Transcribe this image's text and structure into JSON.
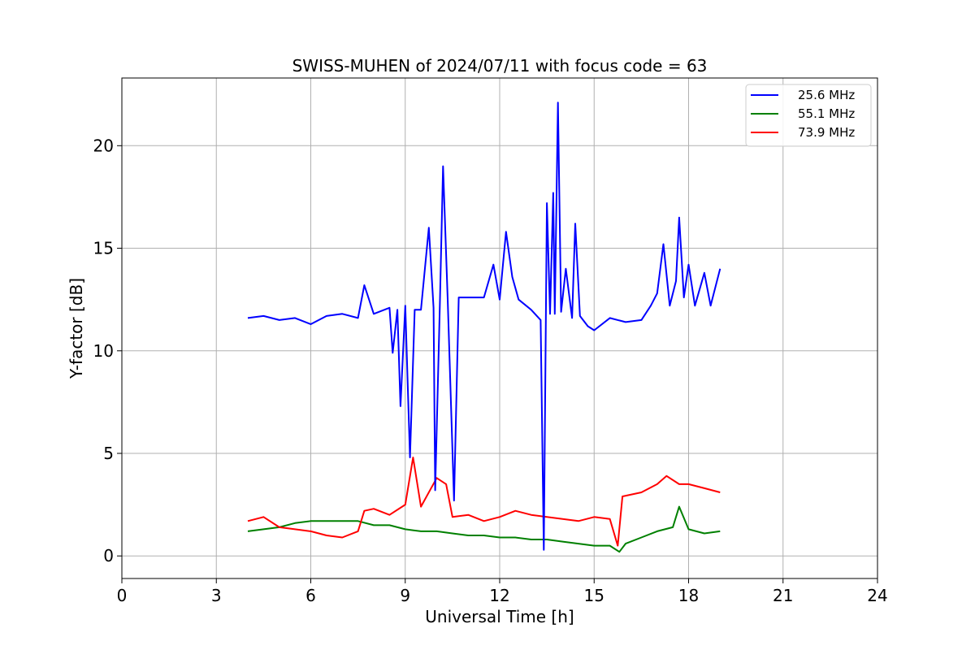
{
  "chart_data": {
    "type": "line",
    "title": "SWISS-MUHEN of 2024/07/11 with focus code = 63",
    "xlabel": "Universal Time [h]",
    "ylabel": "Y-factor [dB]",
    "xlim": [
      0,
      24
    ],
    "ylim": [
      -1.1,
      23.3
    ],
    "xticks": [
      0,
      3,
      6,
      9,
      12,
      15,
      18,
      21,
      24
    ],
    "yticks": [
      0,
      5,
      10,
      15,
      20
    ],
    "grid": true,
    "legend_position": "top-right",
    "series": [
      {
        "name": "25.6 MHz",
        "color": "#0000ff",
        "points": [
          [
            4.0,
            11.6
          ],
          [
            4.5,
            11.7
          ],
          [
            5.0,
            11.5
          ],
          [
            5.5,
            11.6
          ],
          [
            6.0,
            11.3
          ],
          [
            6.5,
            11.7
          ],
          [
            7.0,
            11.8
          ],
          [
            7.5,
            11.6
          ],
          [
            7.7,
            13.2
          ],
          [
            8.0,
            11.8
          ],
          [
            8.5,
            12.1
          ],
          [
            8.6,
            9.9
          ],
          [
            8.75,
            12.0
          ],
          [
            8.85,
            7.3
          ],
          [
            9.0,
            12.2
          ],
          [
            9.15,
            4.8
          ],
          [
            9.3,
            12.0
          ],
          [
            9.5,
            12.0
          ],
          [
            9.75,
            16.0
          ],
          [
            9.9,
            12.1
          ],
          [
            9.95,
            3.2
          ],
          [
            10.1,
            12.3
          ],
          [
            10.2,
            19.0
          ],
          [
            10.35,
            12.4
          ],
          [
            10.55,
            2.7
          ],
          [
            10.7,
            12.6
          ],
          [
            11.0,
            12.6
          ],
          [
            11.5,
            12.6
          ],
          [
            11.8,
            14.2
          ],
          [
            12.0,
            12.5
          ],
          [
            12.2,
            15.8
          ],
          [
            12.4,
            13.6
          ],
          [
            12.6,
            12.5
          ],
          [
            13.0,
            12.0
          ],
          [
            13.3,
            11.5
          ],
          [
            13.4,
            0.3
          ],
          [
            13.5,
            17.2
          ],
          [
            13.6,
            11.8
          ],
          [
            13.7,
            17.7
          ],
          [
            13.75,
            11.8
          ],
          [
            13.85,
            22.1
          ],
          [
            13.95,
            11.9
          ],
          [
            14.1,
            14.0
          ],
          [
            14.3,
            11.6
          ],
          [
            14.4,
            16.2
          ],
          [
            14.55,
            11.7
          ],
          [
            14.8,
            11.2
          ],
          [
            15.0,
            11.0
          ],
          [
            15.5,
            11.6
          ],
          [
            16.0,
            11.4
          ],
          [
            16.5,
            11.5
          ],
          [
            16.8,
            12.2
          ],
          [
            17.0,
            12.8
          ],
          [
            17.2,
            15.2
          ],
          [
            17.4,
            12.2
          ],
          [
            17.6,
            13.4
          ],
          [
            17.7,
            16.5
          ],
          [
            17.85,
            12.6
          ],
          [
            18.0,
            14.2
          ],
          [
            18.2,
            12.2
          ],
          [
            18.5,
            13.8
          ],
          [
            18.7,
            12.2
          ],
          [
            19.0,
            14.0
          ]
        ]
      },
      {
        "name": "55.1 MHz",
        "color": "#008000",
        "points": [
          [
            4.0,
            1.2
          ],
          [
            4.5,
            1.3
          ],
          [
            5.0,
            1.4
          ],
          [
            5.5,
            1.6
          ],
          [
            6.0,
            1.7
          ],
          [
            6.5,
            1.7
          ],
          [
            7.0,
            1.7
          ],
          [
            7.5,
            1.7
          ],
          [
            8.0,
            1.5
          ],
          [
            8.5,
            1.5
          ],
          [
            9.0,
            1.3
          ],
          [
            9.5,
            1.2
          ],
          [
            10.0,
            1.2
          ],
          [
            10.5,
            1.1
          ],
          [
            11.0,
            1.0
          ],
          [
            11.5,
            1.0
          ],
          [
            12.0,
            0.9
          ],
          [
            12.5,
            0.9
          ],
          [
            13.0,
            0.8
          ],
          [
            13.5,
            0.8
          ],
          [
            14.0,
            0.7
          ],
          [
            14.5,
            0.6
          ],
          [
            15.0,
            0.5
          ],
          [
            15.5,
            0.5
          ],
          [
            15.8,
            0.2
          ],
          [
            16.0,
            0.6
          ],
          [
            16.5,
            0.9
          ],
          [
            17.0,
            1.2
          ],
          [
            17.5,
            1.4
          ],
          [
            17.7,
            2.4
          ],
          [
            18.0,
            1.3
          ],
          [
            18.5,
            1.1
          ],
          [
            19.0,
            1.2
          ]
        ]
      },
      {
        "name": "73.9 MHz",
        "color": "#ff0000",
        "points": [
          [
            4.0,
            1.7
          ],
          [
            4.5,
            1.9
          ],
          [
            5.0,
            1.4
          ],
          [
            5.5,
            1.3
          ],
          [
            6.0,
            1.2
          ],
          [
            6.5,
            1.0
          ],
          [
            7.0,
            0.9
          ],
          [
            7.5,
            1.2
          ],
          [
            7.7,
            2.2
          ],
          [
            8.0,
            2.3
          ],
          [
            8.5,
            2.0
          ],
          [
            9.0,
            2.5
          ],
          [
            9.25,
            4.8
          ],
          [
            9.5,
            2.4
          ],
          [
            10.0,
            3.8
          ],
          [
            10.3,
            3.5
          ],
          [
            10.5,
            1.9
          ],
          [
            11.0,
            2.0
          ],
          [
            11.5,
            1.7
          ],
          [
            12.0,
            1.9
          ],
          [
            12.5,
            2.2
          ],
          [
            13.0,
            2.0
          ],
          [
            13.5,
            1.9
          ],
          [
            14.0,
            1.8
          ],
          [
            14.5,
            1.7
          ],
          [
            15.0,
            1.9
          ],
          [
            15.5,
            1.8
          ],
          [
            15.75,
            0.5
          ],
          [
            15.9,
            2.9
          ],
          [
            16.5,
            3.1
          ],
          [
            17.0,
            3.5
          ],
          [
            17.3,
            3.9
          ],
          [
            17.7,
            3.5
          ],
          [
            18.0,
            3.5
          ],
          [
            18.5,
            3.3
          ],
          [
            19.0,
            3.1
          ]
        ]
      }
    ]
  }
}
